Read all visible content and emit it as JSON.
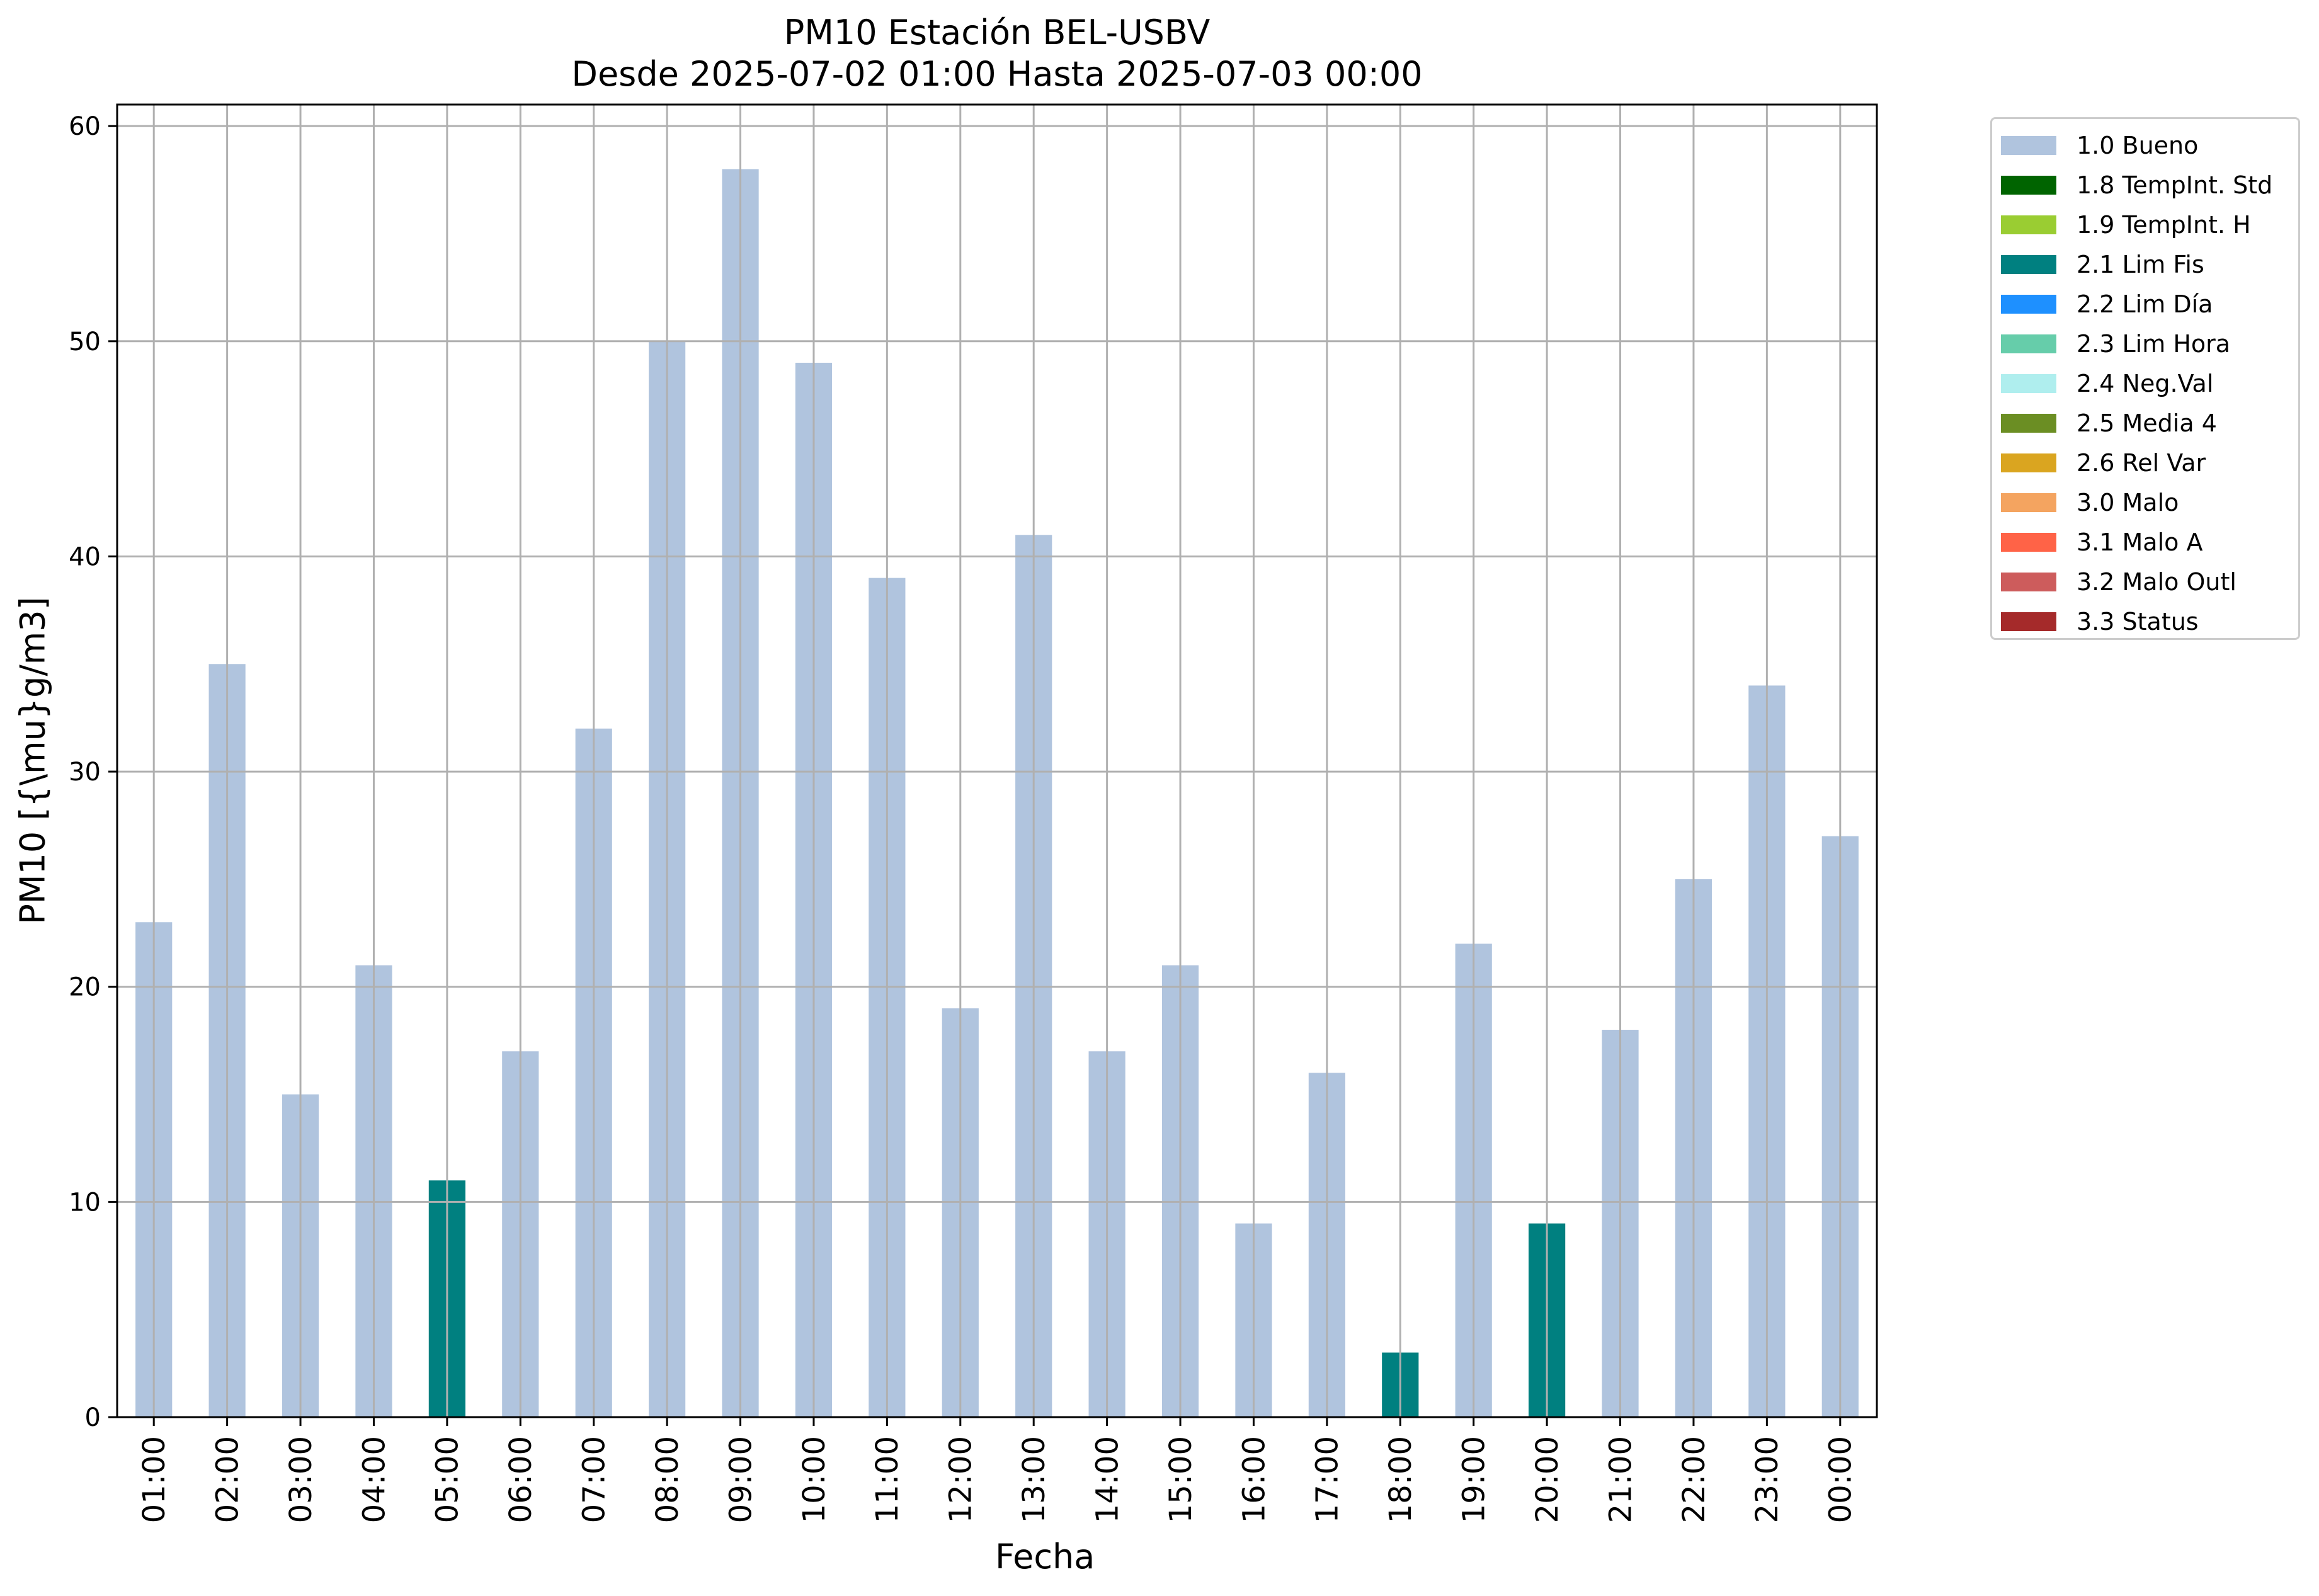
{
  "chart_data": {
    "type": "bar",
    "title": "PM10 Estación BEL-USBV",
    "subtitle": "Desde 2025-07-02 01:00 Hasta 2025-07-03 00:00",
    "xlabel": "Fecha",
    "ylabel": "PM10 [{\\mu}g/m3]",
    "ylim": [
      0,
      61
    ],
    "yticks": [
      0,
      10,
      20,
      30,
      40,
      50,
      60
    ],
    "grid": true,
    "legend_position": "outside-right",
    "categories": [
      "01:00",
      "02:00",
      "03:00",
      "04:00",
      "05:00",
      "06:00",
      "07:00",
      "08:00",
      "09:00",
      "10:00",
      "11:00",
      "12:00",
      "13:00",
      "14:00",
      "15:00",
      "16:00",
      "17:00",
      "18:00",
      "19:00",
      "20:00",
      "21:00",
      "22:00",
      "23:00",
      "00:00"
    ],
    "values": [
      23,
      35,
      15,
      21,
      11,
      17,
      32,
      50,
      58,
      49,
      39,
      19,
      41,
      17,
      21,
      9,
      16,
      3,
      22,
      9,
      18,
      25,
      34,
      27
    ],
    "flags": [
      "1.0 Bueno",
      "1.0 Bueno",
      "1.0 Bueno",
      "1.0 Bueno",
      "2.1 Lim Fis",
      "1.0 Bueno",
      "1.0 Bueno",
      "1.0 Bueno",
      "1.0 Bueno",
      "1.0 Bueno",
      "1.0 Bueno",
      "1.0 Bueno",
      "1.0 Bueno",
      "1.0 Bueno",
      "1.0 Bueno",
      "1.0 Bueno",
      "1.0 Bueno",
      "2.1 Lim Fis",
      "1.0 Bueno",
      "2.1 Lim Fis",
      "1.0 Bueno",
      "1.0 Bueno",
      "1.0 Bueno",
      "1.0 Bueno"
    ],
    "legend": [
      {
        "name": "1.0 Bueno",
        "color": "#b0c4de"
      },
      {
        "name": "1.8 TempInt. Std",
        "color": "#006400"
      },
      {
        "name": "1.9 TempInt. H",
        "color": "#9acd32"
      },
      {
        "name": "2.1 Lim Fis",
        "color": "#008080"
      },
      {
        "name": "2.2 Lim Día",
        "color": "#1e90ff"
      },
      {
        "name": "2.3 Lim Hora",
        "color": "#66cdaa"
      },
      {
        "name": "2.4 Neg.Val",
        "color": "#afeeee"
      },
      {
        "name": "2.5 Media 4",
        "color": "#6b8e23"
      },
      {
        "name": "2.6 Rel Var",
        "color": "#daa520"
      },
      {
        "name": "3.0 Malo",
        "color": "#f4a460"
      },
      {
        "name": "3.1 Malo A",
        "color": "#ff6347"
      },
      {
        "name": "3.2 Malo Outl",
        "color": "#cd5c5c"
      },
      {
        "name": "3.3 Status",
        "color": "#a52a2a"
      }
    ]
  }
}
